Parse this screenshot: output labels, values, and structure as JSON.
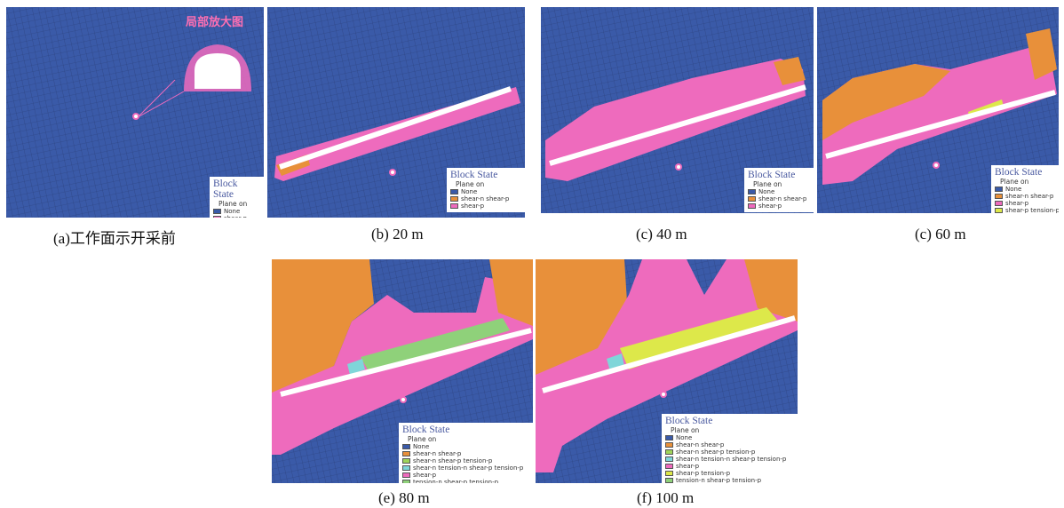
{
  "colors": {
    "none": "#3a5aa8",
    "shear_n_shear_p": "#e8903a",
    "shear_p": "#ee6bbd",
    "shear_p_tension_p": "#dde84a",
    "shear_n_shear_p_tension_p": "#9fd45a",
    "shear_n_tension_n_shear_p_tension_p": "#7fd6d9",
    "tension_n_shear_p_tension_p": "#8fd17a",
    "seam": "#ffffff"
  },
  "legend": {
    "title": "Block State",
    "plane": "Plane  on",
    "labels": {
      "none": "None",
      "shear_n_shear_p": "shear-n shear-p",
      "shear_p": "shear-p",
      "shear_p_tension_p": "shear-p tension-p",
      "shear_n_shear_p_tension_p": "shear-n shear-p tension-p",
      "shear_n_tension_n_shear_p_tension_p": "shear-n tension-n shear-p tension-p",
      "tension_n_shear_p_tension_p": "tension-n shear-p tension-p"
    }
  },
  "inset": {
    "label": "局部放大图"
  },
  "panels": [
    {
      "id": "a",
      "caption": "(a)工作面示开采前",
      "legend_items": [
        "none",
        "shear_p"
      ]
    },
    {
      "id": "b",
      "caption": "(b) 20 m",
      "legend_items": [
        "none",
        "shear_n_shear_p",
        "shear_p"
      ]
    },
    {
      "id": "c40",
      "caption": "(c) 40 m",
      "legend_items": [
        "none",
        "shear_n_shear_p",
        "shear_p"
      ]
    },
    {
      "id": "c60",
      "caption": "(c) 60 m",
      "legend_items": [
        "none",
        "shear_n_shear_p",
        "shear_p",
        "shear_p_tension_p"
      ]
    },
    {
      "id": "e",
      "caption": "(e) 80 m",
      "legend_items": [
        "none",
        "shear_n_shear_p",
        "shear_n_shear_p_tension_p",
        "shear_n_tension_n_shear_p_tension_p",
        "shear_p",
        "tension_n_shear_p_tension_p"
      ]
    },
    {
      "id": "f",
      "caption": "(f) 100 m",
      "legend_items": [
        "none",
        "shear_n_shear_p",
        "shear_n_shear_p_tension_p",
        "shear_n_tension_n_shear_p_tension_p",
        "shear_p",
        "shear_p_tension_p",
        "tension_n_shear_p_tension_p"
      ]
    }
  ]
}
